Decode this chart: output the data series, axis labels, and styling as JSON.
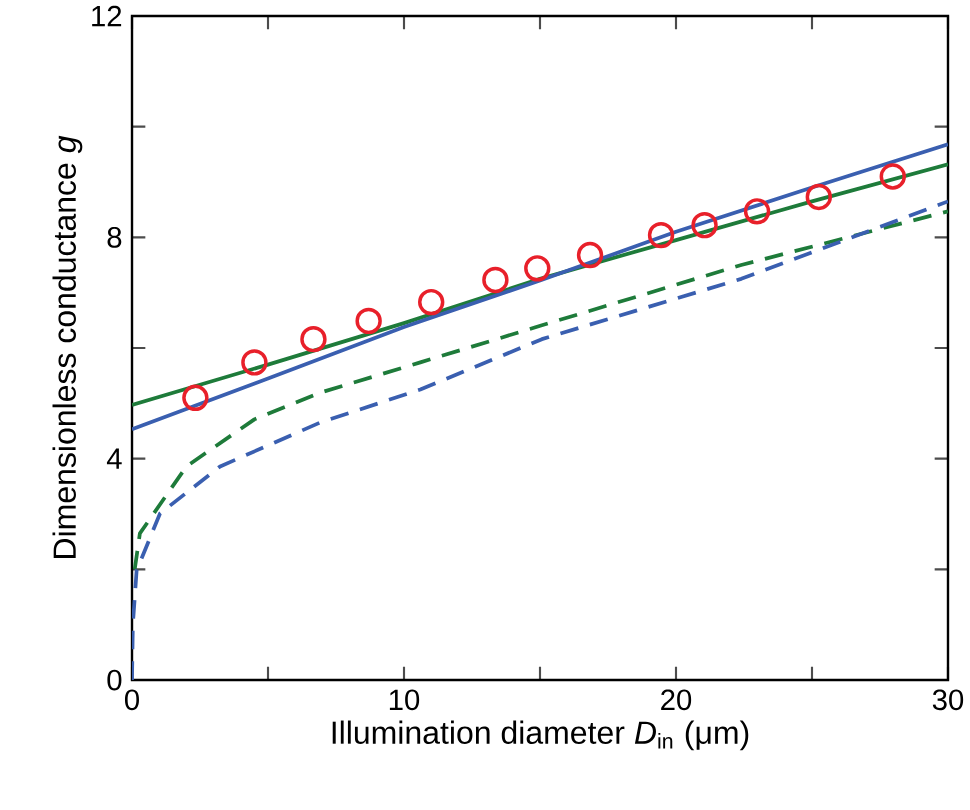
{
  "chart_data": {
    "type": "line",
    "xlabel": "Illumination diameter *D*$_{in}$ (μm)",
    "ylabel": "Dimensionless conductance *g*",
    "xlim": [
      0,
      30
    ],
    "ylim": [
      0,
      12
    ],
    "xticks": [
      0,
      {
        "value": 5,
        "label": null
      },
      10,
      {
        "value": 15,
        "label": null
      },
      20,
      {
        "value": 25,
        "label": null
      },
      30
    ],
    "yticks": [
      0,
      {
        "value": 2,
        "label": null
      },
      4,
      {
        "value": 6,
        "label": null
      },
      8,
      {
        "value": 10,
        "label": null
      },
      12
    ],
    "grid": false,
    "series": [
      {
        "type": "scatter",
        "marker": "circle",
        "color": "#e8202a",
        "x": [
          2.33,
          4.5,
          6.67,
          8.7,
          11.0,
          13.36,
          14.9,
          16.84,
          19.45,
          21.05,
          22.98,
          25.25,
          27.97
        ],
        "values": [
          5.1,
          5.74,
          6.16,
          6.49,
          6.83,
          7.23,
          7.44,
          7.68,
          8.04,
          8.22,
          8.47,
          8.73,
          9.1
        ]
      },
      {
        "line_style": "solid",
        "color": "#1e7b3a",
        "x": [
          0,
          5,
          10,
          15,
          20,
          25,
          30
        ],
        "values": [
          4.97,
          5.7,
          6.45,
          7.25,
          7.95,
          8.65,
          9.32
        ]
      },
      {
        "line_style": "solid",
        "color": "#3a5fb0",
        "x": [
          0,
          5,
          10,
          15,
          20,
          25,
          30
        ],
        "values": [
          4.53,
          5.45,
          6.38,
          7.22,
          8.1,
          8.9,
          9.68
        ]
      },
      {
        "line_style": "dashed",
        "color": "#1e7b3a",
        "x": [
          0.1,
          0.29,
          2.0,
          4.5,
          6.9,
          10.6,
          15.07,
          22.4,
          30
        ],
        "values": [
          2.0,
          2.65,
          3.86,
          4.71,
          5.19,
          5.74,
          6.41,
          7.5,
          8.47
        ]
      },
      {
        "line_style": "dashed",
        "color": "#3a5fb0",
        "x": [
          0,
          0.03,
          0.17,
          1.03,
          3.24,
          6.9,
          10.6,
          15.07,
          22.4,
          30
        ],
        "values": [
          0,
          1.0,
          1.98,
          3.01,
          3.86,
          4.65,
          5.25,
          6.16,
          7.25,
          8.65
        ]
      }
    ]
  }
}
